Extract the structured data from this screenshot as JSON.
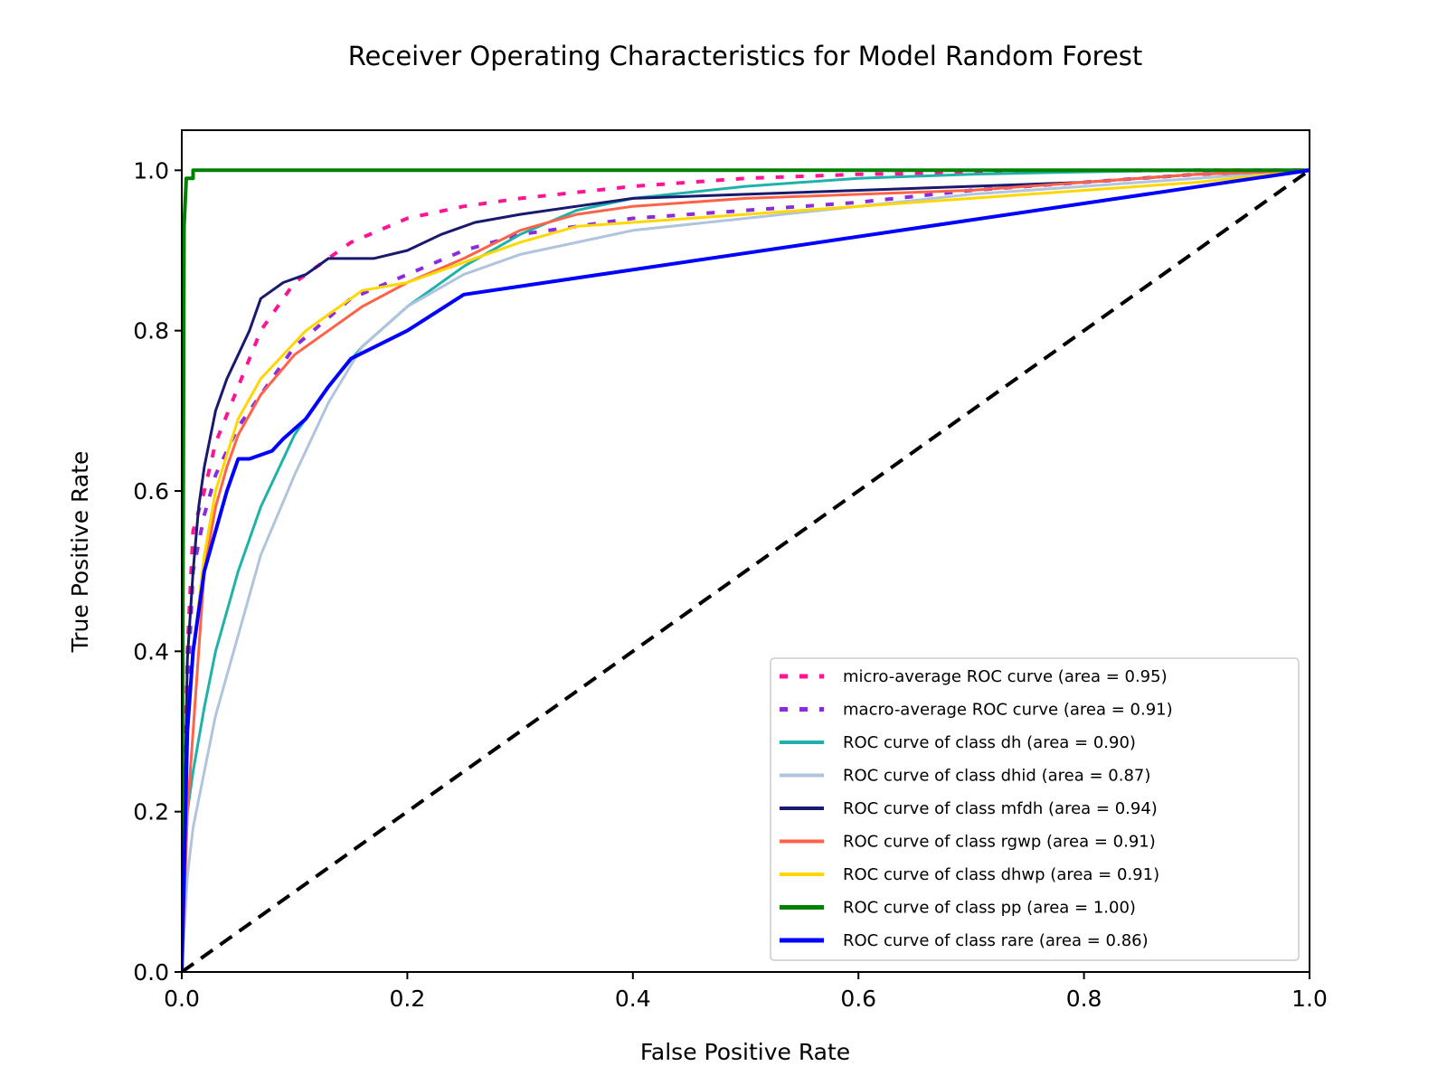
{
  "chart_data": {
    "type": "line",
    "title": "Receiver Operating Characteristics for Model Random Forest",
    "xlabel": "False Positive Rate",
    "ylabel": "True Positive Rate",
    "xlim": [
      0.0,
      1.0
    ],
    "ylim": [
      0.0,
      1.05
    ],
    "xticks": [
      "0.0",
      "0.2",
      "0.4",
      "0.6",
      "0.8",
      "1.0"
    ],
    "yticks": [
      "0.0",
      "0.2",
      "0.4",
      "0.6",
      "0.8",
      "1.0"
    ],
    "grid": false,
    "legend_position": "lower-right",
    "series": [
      {
        "name": "micro-average ROC curve (area = 0.95)",
        "color": "#ff1493",
        "style": "dotted",
        "width": 4,
        "x": [
          0.0,
          0.005,
          0.01,
          0.02,
          0.03,
          0.05,
          0.07,
          0.1,
          0.13,
          0.15,
          0.2,
          0.25,
          0.3,
          0.4,
          0.5,
          0.6,
          0.7,
          0.8,
          0.9,
          1.0
        ],
        "y": [
          0.0,
          0.4,
          0.55,
          0.6,
          0.66,
          0.73,
          0.8,
          0.86,
          0.89,
          0.91,
          0.94,
          0.955,
          0.965,
          0.98,
          0.99,
          0.995,
          0.997,
          0.999,
          1.0,
          1.0
        ]
      },
      {
        "name": "macro-average ROC curve (area = 0.91)",
        "color": "#8a2be2",
        "style": "dotted",
        "width": 4,
        "x": [
          0.0,
          0.005,
          0.01,
          0.02,
          0.03,
          0.05,
          0.07,
          0.1,
          0.15,
          0.2,
          0.25,
          0.3,
          0.35,
          0.4,
          0.5,
          0.6,
          0.7,
          0.8,
          0.9,
          1.0
        ],
        "y": [
          0.0,
          0.35,
          0.5,
          0.57,
          0.62,
          0.68,
          0.72,
          0.78,
          0.84,
          0.87,
          0.9,
          0.92,
          0.93,
          0.94,
          0.95,
          0.96,
          0.975,
          0.985,
          0.995,
          1.0
        ]
      },
      {
        "name": "ROC curve of class dh (area = 0.90)",
        "color": "#20b2aa",
        "style": "solid",
        "width": 3,
        "x": [
          0.0,
          0.005,
          0.01,
          0.02,
          0.03,
          0.04,
          0.05,
          0.07,
          0.1,
          0.13,
          0.16,
          0.2,
          0.25,
          0.3,
          0.35,
          0.4,
          0.5,
          0.6,
          0.7,
          0.8,
          0.9,
          1.0
        ],
        "y": [
          0.0,
          0.2,
          0.25,
          0.33,
          0.4,
          0.45,
          0.5,
          0.58,
          0.67,
          0.73,
          0.78,
          0.83,
          0.88,
          0.92,
          0.95,
          0.965,
          0.98,
          0.99,
          0.995,
          0.998,
          1.0,
          1.0
        ]
      },
      {
        "name": "ROC curve of class dhid (area = 0.87)",
        "color": "#b0c4de",
        "style": "solid",
        "width": 3,
        "x": [
          0.0,
          0.005,
          0.01,
          0.02,
          0.03,
          0.04,
          0.05,
          0.07,
          0.1,
          0.13,
          0.16,
          0.2,
          0.25,
          0.3,
          0.35,
          0.4,
          0.5,
          0.6,
          0.7,
          0.8,
          0.9,
          1.0
        ],
        "y": [
          0.0,
          0.12,
          0.18,
          0.25,
          0.32,
          0.37,
          0.42,
          0.52,
          0.62,
          0.71,
          0.78,
          0.83,
          0.87,
          0.895,
          0.91,
          0.925,
          0.94,
          0.955,
          0.97,
          0.98,
          0.99,
          1.0
        ]
      },
      {
        "name": "ROC curve of class mfdh (area = 0.94)",
        "color": "#191970",
        "style": "solid",
        "width": 3,
        "x": [
          0.0,
          0.005,
          0.01,
          0.015,
          0.02,
          0.03,
          0.04,
          0.05,
          0.06,
          0.07,
          0.09,
          0.11,
          0.13,
          0.15,
          0.17,
          0.2,
          0.23,
          0.26,
          0.3,
          0.35,
          0.4,
          0.5,
          0.6,
          0.7,
          0.8,
          0.9,
          1.0
        ],
        "y": [
          0.0,
          0.39,
          0.5,
          0.58,
          0.63,
          0.7,
          0.74,
          0.77,
          0.8,
          0.84,
          0.86,
          0.87,
          0.89,
          0.89,
          0.89,
          0.9,
          0.92,
          0.935,
          0.945,
          0.955,
          0.965,
          0.97,
          0.975,
          0.98,
          0.985,
          0.995,
          1.0
        ]
      },
      {
        "name": "ROC curve of class rgwp (area = 0.91)",
        "color": "#ff6347",
        "style": "solid",
        "width": 3,
        "x": [
          0.0,
          0.005,
          0.01,
          0.015,
          0.02,
          0.03,
          0.04,
          0.05,
          0.07,
          0.1,
          0.13,
          0.16,
          0.2,
          0.25,
          0.3,
          0.35,
          0.4,
          0.5,
          0.6,
          0.7,
          0.8,
          0.9,
          1.0
        ],
        "y": [
          0.0,
          0.2,
          0.3,
          0.4,
          0.5,
          0.58,
          0.63,
          0.67,
          0.72,
          0.77,
          0.8,
          0.83,
          0.86,
          0.89,
          0.925,
          0.945,
          0.955,
          0.965,
          0.97,
          0.975,
          0.985,
          0.995,
          1.0
        ]
      },
      {
        "name": "ROC curve of class dhwp (area = 0.91)",
        "color": "#ffd700",
        "style": "solid",
        "width": 3,
        "x": [
          0.0,
          0.005,
          0.01,
          0.02,
          0.03,
          0.05,
          0.07,
          0.09,
          0.11,
          0.13,
          0.16,
          0.2,
          0.25,
          0.3,
          0.35,
          0.4,
          0.5,
          0.6,
          0.7,
          0.8,
          0.9,
          1.0
        ],
        "y": [
          0.0,
          0.3,
          0.4,
          0.52,
          0.6,
          0.69,
          0.74,
          0.77,
          0.8,
          0.82,
          0.85,
          0.86,
          0.885,
          0.91,
          0.93,
          0.935,
          0.945,
          0.955,
          0.965,
          0.975,
          0.985,
          1.0
        ]
      },
      {
        "name": "ROC curve of class pp (area = 1.00)",
        "color": "#008000",
        "style": "solid",
        "width": 4,
        "x": [
          0.0,
          0.002,
          0.004,
          0.01,
          0.01,
          1.0
        ],
        "y": [
          0.0,
          0.93,
          0.99,
          0.99,
          1.0,
          1.0
        ]
      },
      {
        "name": "ROC curve of class rare (area = 0.86)",
        "color": "#0000ff",
        "style": "solid",
        "width": 4,
        "x": [
          0.0,
          0.005,
          0.01,
          0.02,
          0.03,
          0.04,
          0.05,
          0.06,
          0.07,
          0.08,
          0.09,
          0.11,
          0.13,
          0.15,
          0.2,
          0.25,
          1.0
        ],
        "y": [
          0.0,
          0.3,
          0.4,
          0.5,
          0.55,
          0.6,
          0.64,
          0.64,
          0.645,
          0.65,
          0.665,
          0.69,
          0.73,
          0.765,
          0.8,
          0.845,
          1.0
        ]
      },
      {
        "name": "",
        "color": "#000000",
        "style": "dashed",
        "width": 4,
        "x": [
          0.0,
          1.0
        ],
        "y": [
          0.0,
          1.0
        ]
      }
    ]
  }
}
